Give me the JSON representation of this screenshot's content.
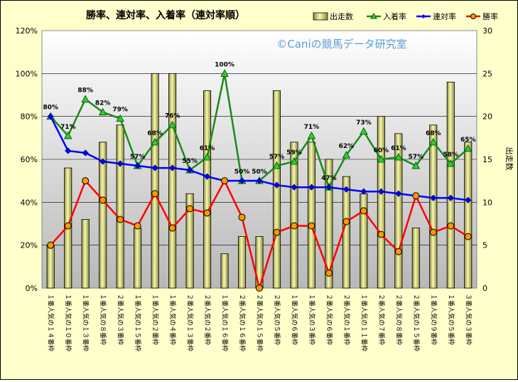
{
  "chart_data": {
    "type": "bar",
    "title": "勝率、連対率、入着率（連対率順）",
    "watermark": "©Caniの競馬データ研究室",
    "y2label": "出走数",
    "ylim": [
      0,
      120
    ],
    "y2lim": [
      0,
      30
    ],
    "yticks": [
      "0%",
      "20%",
      "40%",
      "60%",
      "80%",
      "100%",
      "120%"
    ],
    "y2ticks": [
      "0",
      "5",
      "10",
      "15",
      "20",
      "25",
      "30"
    ],
    "grid": true,
    "legend_position": "top",
    "categories": [
      "１番人気の１４番枠",
      "１番人気の１０番枠",
      "１番人気の１３番枠",
      "１番人気の８番枠",
      "２番人気の３番枠",
      "１番人気の１５番枠",
      "１番人気の２番枠",
      "１番人気の４番枠",
      "２番人気の１３番枠",
      "２番人気の２番枠",
      "１番人気の１６番枠",
      "２番人気の１６番枠",
      "２番人気の１５番枠",
      "２番人気の５番枠",
      "１番人気の６番枠",
      "１番人気の３番枠",
      "２番人気の６番枠",
      "２番人気の１番枠",
      "１番人気の１１番枠",
      "２番人気の７番枠",
      "２番人気の８番枠",
      "２番人気の１５番枠",
      "１番人気の９番枠",
      "１番人気の５番枠",
      "３番人気の３番枠"
    ],
    "series": [
      {
        "name": "出走数",
        "kind": "bar",
        "axis": "y2",
        "color": "#eeee99",
        "values": [
          5,
          14,
          8,
          17,
          19,
          7,
          25,
          25,
          11,
          23,
          4,
          6,
          6,
          23,
          17,
          17,
          15,
          13,
          11,
          20,
          18,
          7,
          19,
          24,
          17
        ]
      },
      {
        "name": "入着率",
        "kind": "line",
        "axis": "y",
        "color": "#1a8a1a",
        "values": [
          80,
          71,
          88,
          82,
          79,
          57,
          68,
          76,
          55,
          61,
          100,
          50,
          50,
          57,
          59,
          71,
          47,
          62,
          73,
          60,
          61,
          57,
          68,
          58,
          65
        ],
        "labels": [
          "80%",
          "71%",
          "88%",
          "82%",
          "79%",
          "57%",
          "68%",
          "76%",
          "55%",
          "61%",
          "100%",
          "50%",
          "50%",
          "57%",
          "59%",
          "71%",
          "47%",
          "62%",
          "73%",
          "60%",
          "61%",
          "57%",
          "68%",
          "58%",
          "65%"
        ]
      },
      {
        "name": "連対率",
        "kind": "line",
        "axis": "y",
        "color": "#0000ff",
        "values": [
          80,
          64,
          63,
          59,
          58,
          57,
          56,
          56,
          55,
          52,
          50,
          50,
          50,
          48,
          47,
          47,
          47,
          46,
          45,
          45,
          44,
          43,
          42,
          42,
          41
        ]
      },
      {
        "name": "勝率",
        "kind": "line",
        "axis": "y",
        "color": "#ff0000",
        "values": [
          20,
          29,
          50,
          41,
          32,
          29,
          44,
          28,
          37,
          35,
          50,
          33,
          0,
          26,
          29,
          29,
          7,
          31,
          36,
          25,
          17,
          43,
          26,
          29,
          24
        ]
      }
    ]
  }
}
